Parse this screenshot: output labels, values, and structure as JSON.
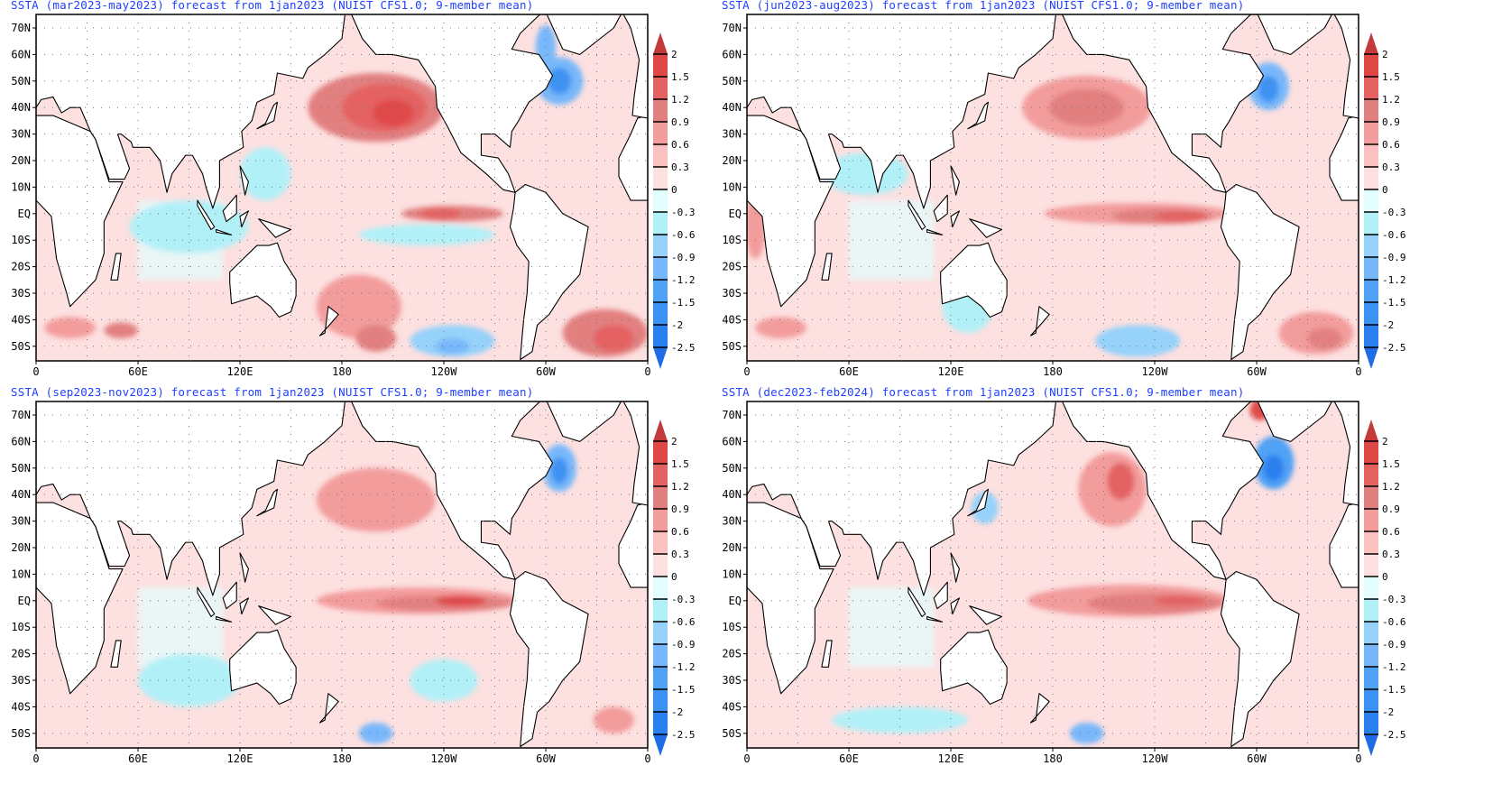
{
  "colorbar": {
    "labels": [
      "2",
      "1.5",
      "1.2",
      "0.9",
      "0.6",
      "0.3",
      "0",
      "-0.3",
      "-0.6",
      "-0.9",
      "-1.2",
      "-1.5",
      "-2",
      "-2.5"
    ],
    "levels": [
      2,
      1.5,
      1.2,
      0.9,
      0.6,
      0.3,
      0,
      -0.3,
      -0.6,
      -0.9,
      -1.2,
      -1.5,
      -2,
      -2.5
    ],
    "colors": [
      "#c43a3a",
      "#e04848",
      "#e46262",
      "#e28080",
      "#f39c9c",
      "#fbc0c0",
      "#fde0e0",
      "#e2fefe",
      "#b2f0f8",
      "#96d2fa",
      "#78b8fa",
      "#50a2f5",
      "#3c92f2",
      "#2a80ee",
      "#1e6ce6"
    ]
  },
  "axes": {
    "lat_labels": [
      "70N",
      "60N",
      "50N",
      "40N",
      "30N",
      "20N",
      "10N",
      "EQ",
      "10S",
      "20S",
      "30S",
      "40S",
      "50S"
    ],
    "lat_values": [
      70,
      60,
      50,
      40,
      30,
      20,
      10,
      0,
      -10,
      -20,
      -30,
      -40,
      -50
    ],
    "lon_labels": [
      "0",
      "60E",
      "120E",
      "180",
      "120W",
      "60W",
      "0"
    ],
    "lon_values": [
      0,
      60,
      120,
      180,
      240,
      300,
      360
    ]
  },
  "panels": [
    {
      "title": "SSTA (mar2023-may2023) forecast from 1jan2023 (NUIST CFS1.0; 9-member mean)",
      "anomalies": [
        {
          "lon": 200,
          "lat": 40,
          "rx": 40,
          "ry": 13,
          "v": 0.9
        },
        {
          "lon": 205,
          "lat": 40,
          "rx": 25,
          "ry": 9,
          "v": 1.2
        },
        {
          "lon": 210,
          "lat": 38,
          "rx": 12,
          "ry": 5,
          "v": 1.5
        },
        {
          "lon": 308,
          "lat": 50,
          "rx": 14,
          "ry": 9,
          "v": -0.9
        },
        {
          "lon": 308,
          "lat": 50,
          "rx": 7,
          "ry": 5,
          "v": -1.5
        },
        {
          "lon": 300,
          "lat": 63,
          "rx": 6,
          "ry": 8,
          "v": -0.9
        },
        {
          "lon": 245,
          "lat": 0,
          "rx": 30,
          "ry": 3,
          "v": 0.9
        },
        {
          "lon": 238,
          "lat": 0,
          "rx": 12,
          "ry": 2,
          "v": 1.2
        },
        {
          "lon": 230,
          "lat": -8,
          "rx": 40,
          "ry": 4,
          "v": -0.3
        },
        {
          "lon": 90,
          "lat": -5,
          "rx": 35,
          "ry": 10,
          "v": -0.3
        },
        {
          "lon": 135,
          "lat": 15,
          "rx": 15,
          "ry": 10,
          "v": -0.3
        },
        {
          "lon": 190,
          "lat": -35,
          "rx": 25,
          "ry": 12,
          "v": 0.6
        },
        {
          "lon": 200,
          "lat": -47,
          "rx": 12,
          "ry": 5,
          "v": 0.9
        },
        {
          "lon": 335,
          "lat": -45,
          "rx": 25,
          "ry": 9,
          "v": 0.9
        },
        {
          "lon": 340,
          "lat": -47,
          "rx": 12,
          "ry": 5,
          "v": 1.2
        },
        {
          "lon": 245,
          "lat": -48,
          "rx": 25,
          "ry": 6,
          "v": -0.6
        },
        {
          "lon": 245,
          "lat": -50,
          "rx": 10,
          "ry": 3,
          "v": -0.9
        },
        {
          "lon": 20,
          "lat": -43,
          "rx": 15,
          "ry": 4,
          "v": 0.6
        },
        {
          "lon": 50,
          "lat": -44,
          "rx": 10,
          "ry": 3,
          "v": 0.9
        }
      ]
    },
    {
      "title": "SSTA (jun2023-aug2023) forecast from 1jan2023 (NUIST CFS1.0; 9-member mean)",
      "anomalies": [
        {
          "lon": 200,
          "lat": 40,
          "rx": 38,
          "ry": 12,
          "v": 0.6
        },
        {
          "lon": 200,
          "lat": 40,
          "rx": 22,
          "ry": 7,
          "v": 0.9
        },
        {
          "lon": 307,
          "lat": 48,
          "rx": 12,
          "ry": 9,
          "v": -0.9
        },
        {
          "lon": 307,
          "lat": 47,
          "rx": 6,
          "ry": 5,
          "v": -1.5
        },
        {
          "lon": 230,
          "lat": 0,
          "rx": 55,
          "ry": 4,
          "v": 0.6
        },
        {
          "lon": 245,
          "lat": -1,
          "rx": 30,
          "ry": 3,
          "v": 0.9
        },
        {
          "lon": 255,
          "lat": -1,
          "rx": 15,
          "ry": 2,
          "v": 1.2
        },
        {
          "lon": 70,
          "lat": 15,
          "rx": 25,
          "ry": 8,
          "v": -0.3
        },
        {
          "lon": 130,
          "lat": -35,
          "rx": 15,
          "ry": 10,
          "v": -0.3
        },
        {
          "lon": 230,
          "lat": -48,
          "rx": 25,
          "ry": 6,
          "v": -0.6
        },
        {
          "lon": 335,
          "lat": -45,
          "rx": 22,
          "ry": 8,
          "v": 0.6
        },
        {
          "lon": 340,
          "lat": -47,
          "rx": 10,
          "ry": 4,
          "v": 0.9
        },
        {
          "lon": 20,
          "lat": -43,
          "rx": 15,
          "ry": 4,
          "v": 0.6
        },
        {
          "lon": 5,
          "lat": -5,
          "rx": 6,
          "ry": 12,
          "v": 0.6
        }
      ]
    },
    {
      "title": "SSTA (sep2023-nov2023) forecast from 1jan2023 (NUIST CFS1.0; 9-member mean)",
      "anomalies": [
        {
          "lon": 200,
          "lat": 38,
          "rx": 35,
          "ry": 12,
          "v": 0.6
        },
        {
          "lon": 308,
          "lat": 50,
          "rx": 10,
          "ry": 9,
          "v": -0.9
        },
        {
          "lon": 308,
          "lat": 49,
          "rx": 5,
          "ry": 5,
          "v": -1.5
        },
        {
          "lon": 225,
          "lat": 0,
          "rx": 60,
          "ry": 5,
          "v": 0.6
        },
        {
          "lon": 240,
          "lat": -1,
          "rx": 40,
          "ry": 3,
          "v": 0.9
        },
        {
          "lon": 250,
          "lat": 0,
          "rx": 15,
          "ry": 2,
          "v": 1.5
        },
        {
          "lon": 90,
          "lat": -30,
          "rx": 30,
          "ry": 10,
          "v": -0.3
        },
        {
          "lon": 200,
          "lat": -50,
          "rx": 10,
          "ry": 4,
          "v": -0.9
        },
        {
          "lon": 240,
          "lat": -30,
          "rx": 20,
          "ry": 8,
          "v": -0.3
        },
        {
          "lon": 340,
          "lat": -45,
          "rx": 12,
          "ry": 5,
          "v": 0.6
        }
      ]
    },
    {
      "title": "SSTA (dec2023-feb2024) forecast from 1jan2023 (NUIST CFS1.0; 9-member mean)",
      "anomalies": [
        {
          "lon": 215,
          "lat": 42,
          "rx": 20,
          "ry": 14,
          "v": 0.6
        },
        {
          "lon": 220,
          "lat": 45,
          "rx": 8,
          "ry": 7,
          "v": 1.2
        },
        {
          "lon": 310,
          "lat": 52,
          "rx": 12,
          "ry": 10,
          "v": -1.2
        },
        {
          "lon": 310,
          "lat": 50,
          "rx": 6,
          "ry": 5,
          "v": -2
        },
        {
          "lon": 302,
          "lat": 72,
          "rx": 6,
          "ry": 4,
          "v": 1.5
        },
        {
          "lon": 140,
          "lat": 35,
          "rx": 8,
          "ry": 6,
          "v": -0.6
        },
        {
          "lon": 225,
          "lat": 0,
          "rx": 60,
          "ry": 6,
          "v": 0.6
        },
        {
          "lon": 240,
          "lat": -1,
          "rx": 40,
          "ry": 4,
          "v": 0.9
        },
        {
          "lon": 255,
          "lat": 0,
          "rx": 15,
          "ry": 2,
          "v": 1.2
        },
        {
          "lon": 90,
          "lat": -45,
          "rx": 40,
          "ry": 5,
          "v": -0.3
        },
        {
          "lon": 200,
          "lat": -50,
          "rx": 10,
          "ry": 4,
          "v": -0.9
        }
      ]
    }
  ]
}
